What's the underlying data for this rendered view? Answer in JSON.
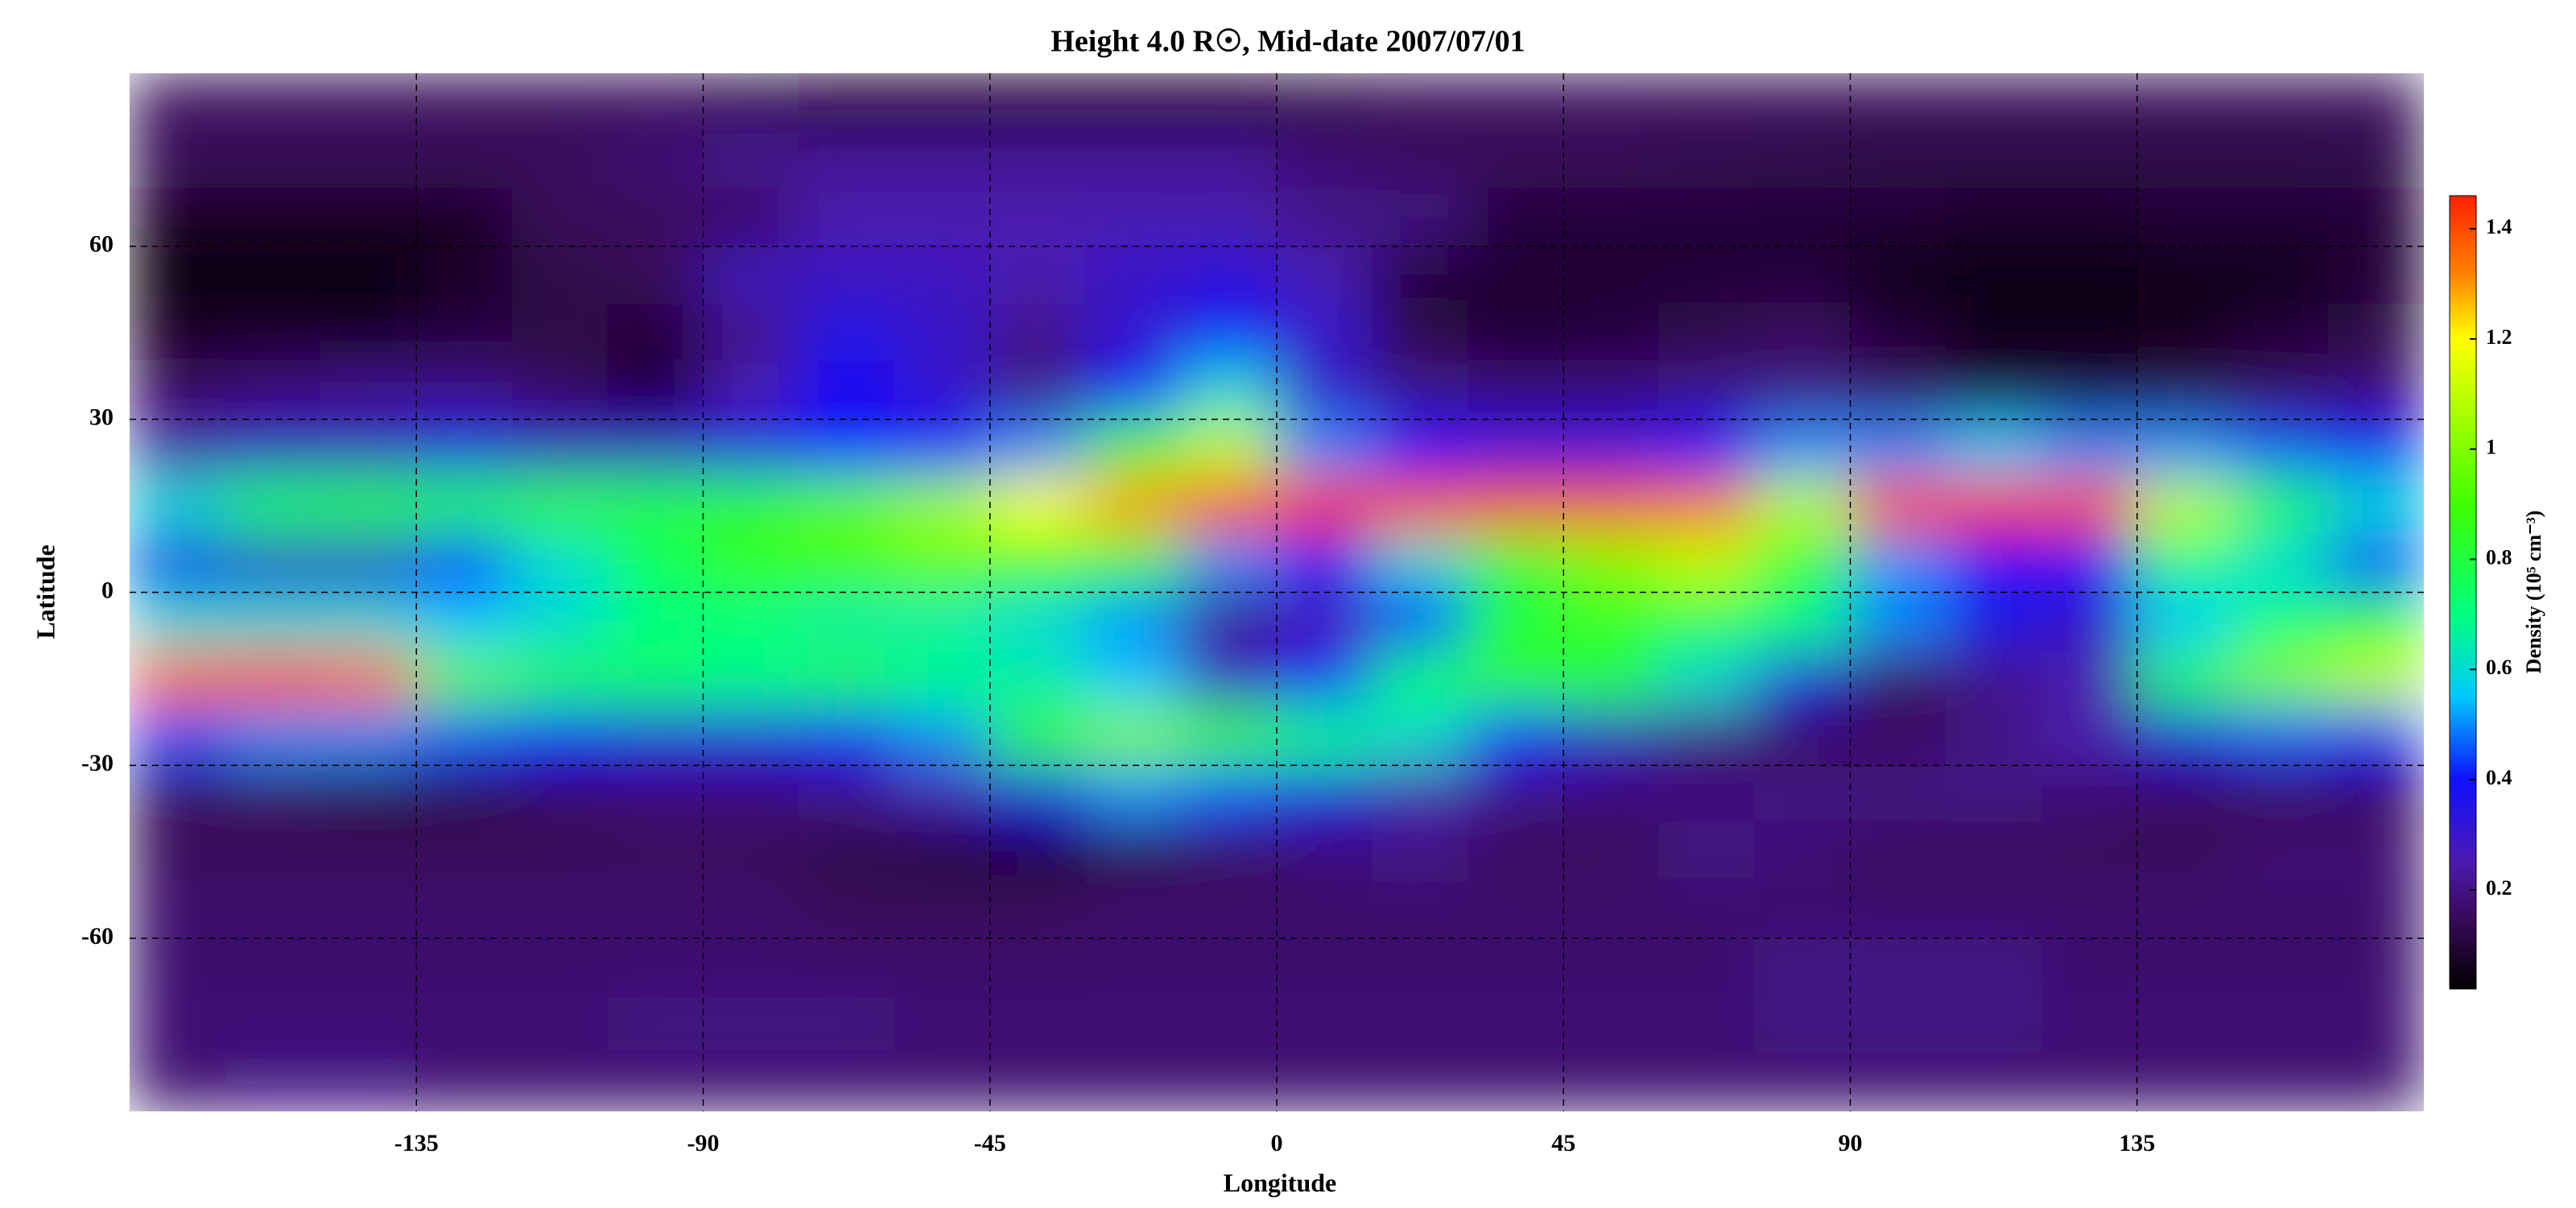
{
  "chart_data": {
    "type": "heatmap",
    "title": "Height 4.0 R☉, Mid-date 2007/07/01",
    "x_label": "Longitude",
    "y_label": "Latitude",
    "colorbar_label": "Density (10⁵ cm⁻³)",
    "xlim": [
      -180,
      180
    ],
    "xticks": [
      -135,
      -90,
      -45,
      0,
      45,
      90,
      135
    ],
    "ylim": [
      -90,
      90
    ],
    "yticks": [
      -60,
      -30,
      0,
      30,
      60
    ],
    "zlim": [
      0.02,
      1.46
    ],
    "zticks": [
      0.2,
      0.4,
      0.6,
      0.8,
      1.0,
      1.2,
      1.4
    ],
    "grid": true,
    "colorscale": [
      [
        0.02,
        "#000000"
      ],
      [
        0.15,
        "#3a0a5c"
      ],
      [
        0.25,
        "#4c1ab0"
      ],
      [
        0.4,
        "#1010ff"
      ],
      [
        0.55,
        "#00c8ff"
      ],
      [
        0.7,
        "#00ff80"
      ],
      [
        0.9,
        "#40ff00"
      ],
      [
        1.2,
        "#ffff00"
      ],
      [
        1.32,
        "#ff8000"
      ],
      [
        1.46,
        "#ff2000"
      ]
    ],
    "x": [
      -172.5,
      -157.5,
      -142.5,
      -127.5,
      -112.5,
      -97.5,
      -82.5,
      -67.5,
      -52.5,
      -37.5,
      -22.5,
      -7.5,
      7.5,
      22.5,
      37.5,
      52.5,
      67.5,
      82.5,
      97.5,
      112.5,
      127.5,
      142.5,
      157.5,
      172.5
    ],
    "y": [
      85,
      75,
      65,
      55,
      45,
      35,
      25,
      15,
      5,
      -5,
      -15,
      -25,
      -35,
      -45,
      -55,
      -65,
      -75,
      -85
    ],
    "z": [
      [
        0.15,
        0.15,
        0.15,
        0.15,
        0.15,
        0.15,
        0.12,
        0.08,
        0.08,
        0.08,
        0.08,
        0.08,
        0.12,
        0.15,
        0.15,
        0.15,
        0.15,
        0.15,
        0.15,
        0.15,
        0.15,
        0.15,
        0.15,
        0.15
      ],
      [
        0.15,
        0.15,
        0.15,
        0.15,
        0.15,
        0.18,
        0.22,
        0.22,
        0.22,
        0.22,
        0.22,
        0.22,
        0.18,
        0.15,
        0.15,
        0.15,
        0.14,
        0.13,
        0.12,
        0.12,
        0.12,
        0.12,
        0.12,
        0.13
      ],
      [
        0.06,
        0.06,
        0.06,
        0.06,
        0.15,
        0.15,
        0.15,
        0.25,
        0.25,
        0.25,
        0.25,
        0.25,
        0.2,
        0.2,
        0.1,
        0.1,
        0.1,
        0.1,
        0.1,
        0.08,
        0.08,
        0.1,
        0.1,
        0.1
      ],
      [
        0.05,
        0.05,
        0.05,
        0.08,
        0.12,
        0.15,
        0.28,
        0.28,
        0.28,
        0.25,
        0.3,
        0.32,
        0.25,
        0.1,
        0.1,
        0.1,
        0.1,
        0.1,
        0.05,
        0.05,
        0.05,
        0.05,
        0.05,
        0.1
      ],
      [
        0.06,
        0.06,
        0.06,
        0.1,
        0.12,
        0.1,
        0.2,
        0.35,
        0.3,
        0.2,
        0.3,
        0.4,
        0.3,
        0.12,
        0.08,
        0.1,
        0.12,
        0.15,
        0.1,
        0.05,
        0.05,
        0.06,
        0.1,
        0.12
      ],
      [
        0.15,
        0.18,
        0.2,
        0.2,
        0.15,
        0.1,
        0.25,
        0.38,
        0.3,
        0.2,
        0.4,
        0.6,
        0.3,
        0.2,
        0.18,
        0.18,
        0.2,
        0.2,
        0.15,
        0.1,
        0.1,
        0.12,
        0.15,
        0.18
      ],
      [
        0.25,
        0.3,
        0.3,
        0.35,
        0.3,
        0.3,
        0.35,
        0.4,
        0.4,
        0.5,
        0.9,
        1.1,
        0.5,
        0.4,
        0.35,
        0.35,
        0.4,
        0.5,
        0.5,
        0.55,
        0.5,
        0.5,
        0.45,
        0.4
      ],
      [
        0.6,
        0.75,
        0.8,
        0.8,
        0.85,
        0.8,
        0.85,
        0.95,
        1.05,
        1.2,
        1.3,
        1.4,
        1.45,
        1.4,
        1.4,
        1.4,
        1.35,
        1.1,
        1.4,
        1.45,
        1.4,
        1.1,
        0.8,
        0.6
      ],
      [
        0.35,
        0.3,
        0.3,
        0.4,
        0.6,
        0.75,
        0.85,
        0.9,
        0.95,
        0.9,
        0.8,
        0.5,
        0.4,
        0.6,
        0.8,
        1.0,
        1.1,
        0.8,
        0.5,
        0.4,
        0.4,
        0.7,
        0.6,
        0.4
      ],
      [
        0.6,
        0.6,
        0.6,
        0.55,
        0.6,
        0.7,
        0.7,
        0.65,
        0.65,
        0.6,
        0.5,
        0.2,
        0.25,
        0.4,
        0.8,
        0.85,
        0.8,
        0.7,
        0.5,
        0.35,
        0.3,
        0.55,
        0.7,
        0.8
      ],
      [
        1.35,
        1.4,
        1.35,
        0.95,
        0.8,
        0.75,
        0.7,
        0.8,
        0.7,
        0.65,
        0.55,
        0.3,
        0.4,
        0.75,
        0.85,
        0.8,
        0.6,
        0.35,
        0.15,
        0.2,
        0.25,
        0.8,
        1.0,
        1.1
      ],
      [
        0.45,
        0.5,
        0.5,
        0.45,
        0.4,
        0.35,
        0.35,
        0.4,
        0.5,
        0.85,
        1.0,
        0.9,
        0.7,
        0.6,
        0.4,
        0.3,
        0.2,
        0.15,
        0.15,
        0.2,
        0.25,
        0.35,
        0.45,
        0.4
      ],
      [
        0.15,
        0.15,
        0.12,
        0.12,
        0.15,
        0.18,
        0.18,
        0.2,
        0.25,
        0.35,
        0.5,
        0.45,
        0.35,
        0.25,
        0.2,
        0.18,
        0.18,
        0.2,
        0.2,
        0.2,
        0.18,
        0.15,
        0.15,
        0.15
      ],
      [
        0.15,
        0.15,
        0.15,
        0.15,
        0.15,
        0.15,
        0.15,
        0.12,
        0.1,
        0.1,
        0.12,
        0.15,
        0.18,
        0.2,
        0.15,
        0.15,
        0.2,
        0.18,
        0.15,
        0.15,
        0.15,
        0.15,
        0.18,
        0.18
      ],
      [
        0.17,
        0.17,
        0.17,
        0.17,
        0.17,
        0.17,
        0.17,
        0.15,
        0.15,
        0.15,
        0.17,
        0.17,
        0.17,
        0.17,
        0.17,
        0.17,
        0.17,
        0.17,
        0.17,
        0.17,
        0.17,
        0.17,
        0.17,
        0.17
      ],
      [
        0.17,
        0.17,
        0.17,
        0.17,
        0.17,
        0.17,
        0.17,
        0.17,
        0.17,
        0.17,
        0.17,
        0.17,
        0.17,
        0.17,
        0.17,
        0.17,
        0.17,
        0.2,
        0.2,
        0.2,
        0.17,
        0.17,
        0.17,
        0.17
      ],
      [
        0.18,
        0.18,
        0.18,
        0.18,
        0.18,
        0.2,
        0.2,
        0.2,
        0.18,
        0.18,
        0.18,
        0.18,
        0.18,
        0.18,
        0.18,
        0.18,
        0.18,
        0.2,
        0.2,
        0.2,
        0.18,
        0.18,
        0.18,
        0.18
      ],
      [
        0.17,
        0.2,
        0.2,
        0.17,
        0.17,
        0.17,
        0.17,
        0.17,
        0.17,
        0.17,
        0.17,
        0.17,
        0.17,
        0.17,
        0.17,
        0.17,
        0.17,
        0.17,
        0.17,
        0.17,
        0.17,
        0.17,
        0.17,
        0.17
      ]
    ]
  }
}
